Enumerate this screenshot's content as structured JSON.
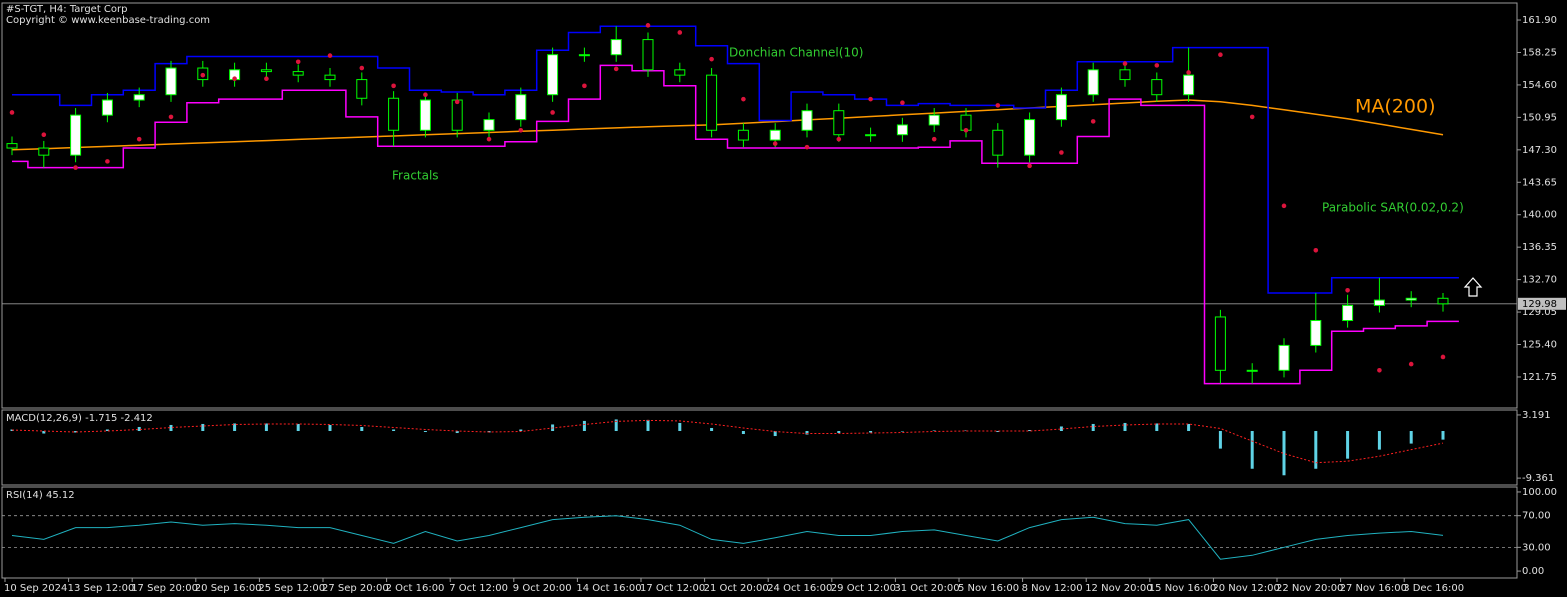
{
  "chart_data": [
    {
      "type": "candlestick",
      "title": "#S-TGT, H4:  Target Corp",
      "subtitle": "Copyright © www.keenbase-trading.com",
      "open": [
        148.0,
        147.5,
        146.7,
        151.2,
        152.9,
        153.5,
        156.5,
        155.2,
        156.3,
        156.1,
        155.7,
        155.2,
        153.1,
        149.5,
        152.9,
        149.5,
        150.7,
        153.5,
        158.0,
        158.0,
        159.7,
        156.3,
        155.7,
        149.5,
        148.4,
        149.5,
        151.7,
        149.0,
        149.0,
        150.1,
        151.2,
        149.5,
        146.7,
        150.7,
        153.5,
        156.3,
        155.2,
        153.5,
        128.5,
        122.5,
        122.5,
        125.3,
        128.1,
        129.8,
        130.4,
        130.6
      ],
      "high": [
        148.8,
        148.3,
        152.0,
        153.7,
        154.3,
        157.3,
        157.3,
        157.1,
        157.1,
        156.9,
        156.5,
        156.0,
        153.9,
        153.7,
        153.7,
        151.5,
        154.3,
        158.8,
        158.8,
        161.2,
        160.5,
        157.1,
        156.5,
        150.3,
        150.3,
        152.5,
        152.5,
        149.8,
        150.9,
        152.0,
        152.0,
        150.3,
        151.5,
        154.3,
        157.1,
        157.1,
        156.0,
        158.8,
        129.3,
        123.3,
        126.1,
        131.2,
        131.0,
        132.9,
        131.4,
        131.2
      ],
      "low": [
        146.7,
        145.3,
        145.9,
        150.4,
        152.1,
        152.7,
        154.4,
        154.4,
        155.3,
        154.9,
        154.4,
        152.3,
        147.7,
        148.7,
        148.7,
        148.7,
        149.9,
        152.7,
        157.2,
        157.2,
        155.5,
        154.9,
        148.7,
        147.6,
        147.6,
        148.7,
        148.2,
        148.2,
        148.2,
        149.3,
        148.7,
        145.3,
        145.9,
        149.9,
        152.7,
        154.4,
        152.7,
        152.7,
        121.0,
        121.0,
        121.7,
        124.5,
        127.3,
        129.0,
        129.6,
        129.1
      ],
      "close": [
        147.5,
        146.7,
        151.2,
        152.9,
        153.5,
        156.5,
        155.2,
        156.3,
        156.1,
        155.7,
        155.2,
        153.1,
        149.5,
        152.9,
        149.5,
        150.7,
        153.5,
        158.0,
        158.0,
        159.7,
        156.3,
        155.7,
        149.5,
        148.4,
        149.5,
        151.7,
        149.0,
        149.0,
        150.1,
        151.2,
        149.5,
        146.7,
        150.7,
        153.5,
        156.3,
        155.2,
        153.5,
        155.7,
        122.5,
        122.5,
        125.3,
        128.1,
        129.8,
        130.4,
        130.6,
        129.98
      ],
      "up_color": "#ffffff",
      "down_color": "#000000",
      "wick_color": "#00ff00",
      "ma": {
        "label": "MA(200)",
        "color": "#ff9900",
        "values": [
          147.3,
          147.43,
          147.56,
          147.69,
          147.82,
          147.95,
          148.08,
          148.21,
          148.34,
          148.47,
          148.6,
          148.73,
          148.86,
          148.99,
          149.12,
          149.25,
          149.38,
          149.51,
          149.64,
          149.77,
          149.9,
          150.0,
          150.1,
          150.29,
          150.48,
          150.67,
          150.86,
          151.05,
          151.24,
          151.43,
          151.62,
          151.81,
          152.0,
          152.19,
          152.38,
          152.57,
          152.76,
          152.9,
          152.7,
          152.3,
          151.8,
          151.3,
          150.8,
          150.2,
          149.6,
          149.0
        ]
      },
      "donchian": {
        "label": "Donchian Channel(10)",
        "upper": {
          "color": "#0000ff",
          "values": [
            153.5,
            153.5,
            152.3,
            153.5,
            154.0,
            157.0,
            157.8,
            157.8,
            157.8,
            157.8,
            157.8,
            157.8,
            156.5,
            154.0,
            153.8,
            153.5,
            154.0,
            158.5,
            160.5,
            161.2,
            161.2,
            161.2,
            159.0,
            157.0,
            150.6,
            153.8,
            153.5,
            153.0,
            152.3,
            152.5,
            152.3,
            152.3,
            152.0,
            154.0,
            157.2,
            157.2,
            157.2,
            158.8,
            158.8,
            158.8,
            131.2,
            131.2,
            132.9,
            132.9,
            132.9,
            132.9
          ]
        },
        "lower": {
          "color": "#ff00ff",
          "values": [
            146.0,
            145.3,
            145.3,
            145.3,
            147.5,
            150.4,
            152.6,
            153.0,
            153.0,
            154.0,
            154.0,
            151.0,
            147.7,
            147.7,
            147.7,
            147.7,
            148.2,
            150.5,
            153.0,
            156.8,
            156.2,
            154.5,
            148.5,
            147.5,
            147.5,
            147.5,
            147.5,
            147.5,
            147.5,
            147.6,
            148.3,
            145.8,
            145.8,
            145.8,
            148.8,
            153.0,
            152.3,
            152.3,
            121.0,
            121.0,
            121.0,
            122.5,
            126.9,
            127.2,
            127.5,
            128.0
          ]
        }
      },
      "sar": {
        "label": "Parabolic SAR(0.02,0.2)",
        "color": "#dc143c",
        "values": [
          151.5,
          149.0,
          145.3,
          146.0,
          148.5,
          151.0,
          155.7,
          155.3,
          155.3,
          157.2,
          157.9,
          156.5,
          154.5,
          153.5,
          152.7,
          148.5,
          149.5,
          151.5,
          154.5,
          156.4,
          161.3,
          160.5,
          157.5,
          153.0,
          148.0,
          147.6,
          148.5,
          153.0,
          152.6,
          148.5,
          149.5,
          152.3,
          145.5,
          147.0,
          150.5,
          157.0,
          156.8,
          156.0,
          158.0,
          151.0,
          141.0,
          136.0,
          131.5,
          122.5,
          123.2,
          124.0
        ]
      },
      "fractals_label": "Fractals",
      "last_price": {
        "value": 129.98,
        "label": "129.98"
      },
      "ylim": [
        118.26,
        163.59
      ],
      "yticks": [
        {
          "value": 161.9,
          "label": "161.90"
        },
        158.25,
        {
          "value": 154.6,
          "label": "154.60"
        },
        150.95,
        {
          "value": 147.3,
          "label": "147.30"
        },
        143.65,
        {
          "value": 140,
          "label": "140.00"
        },
        136.35,
        {
          "value": 132.7,
          "label": "132.70"
        },
        129.05,
        {
          "value": 125.4,
          "label": "125.40"
        },
        121.75
      ]
    },
    {
      "type": "bar",
      "title": "MACD(12,26,9) -1.715 -2.412",
      "color": "#5fd3e6",
      "values": [
        0.3,
        -0.5,
        -0.3,
        0.3,
        0.8,
        1.2,
        1.4,
        1.5,
        1.5,
        1.4,
        1.2,
        0.8,
        0.3,
        -0.2,
        -0.4,
        -0.3,
        0.3,
        1.3,
        2.0,
        2.3,
        2.2,
        1.6,
        0.6,
        -0.6,
        -1.0,
        -0.7,
        -0.4,
        -0.3,
        -0.1,
        0.1,
        0.1,
        -0.2,
        0.2,
        0.9,
        1.4,
        1.6,
        1.5,
        1.4,
        -3.5,
        -7.5,
        -8.8,
        -7.5,
        -5.5,
        -3.7,
        -2.5,
        -1.715
      ],
      "signal": {
        "color": "#ff2020",
        "values": [
          0.2,
          0,
          -0.2,
          0,
          0.3,
          0.7,
          1.0,
          1.3,
          1.4,
          1.4,
          1.3,
          1.1,
          0.7,
          0.3,
          0,
          -0.2,
          -0.1,
          0.6,
          1.3,
          1.9,
          2.1,
          2.0,
          1.4,
          0.6,
          -0.1,
          -0.5,
          -0.5,
          -0.4,
          -0.3,
          -0.1,
          0,
          0,
          0,
          0.4,
          0.9,
          1.2,
          1.4,
          1.4,
          0.5,
          -2.0,
          -4.5,
          -6.3,
          -6.0,
          -5.0,
          -3.7,
          -2.412
        ]
      },
      "ylim": [
        -10.73,
        3.975
      ],
      "yticks": [
        3.191,
        -9.361
      ]
    },
    {
      "type": "line",
      "title": "RSI(14) 45.12",
      "color": "#20b2c0",
      "values": [
        45,
        40,
        55,
        55,
        58,
        62,
        58,
        60,
        58,
        55,
        55,
        45,
        35,
        50,
        38,
        45,
        55,
        65,
        68,
        70,
        65,
        58,
        40,
        35,
        42,
        50,
        45,
        45,
        50,
        52,
        45,
        38,
        55,
        65,
        68,
        60,
        58,
        65,
        15,
        20,
        30,
        40,
        45,
        48,
        50,
        45.12
      ],
      "levels": [
        70,
        30
      ],
      "ylim": [
        -8.75,
        105
      ],
      "yticks": [
        {
          "value": 100,
          "label": "100.00"
        },
        {
          "value": 70,
          "label": "70.00"
        },
        {
          "value": 30,
          "label": "30.00"
        },
        {
          "value": 0,
          "label": "0.00"
        }
      ],
      "categories": [
        "10 Sep 2024",
        null,
        "13 Sep 12:00",
        null,
        "17 Sep 20:00",
        null,
        "20 Sep 16:00",
        null,
        "25 Sep 12:00",
        null,
        "27 Sep 20:00",
        null,
        "2 Oct 16:00",
        null,
        "7 Oct 12:00",
        null,
        "9 Oct 20:00",
        null,
        "14 Oct 16:00",
        null,
        "17 Oct 12:00",
        null,
        "21 Oct 20:00",
        null,
        "24 Oct 16:00",
        null,
        "29 Oct 12:00",
        null,
        "31 Oct 20:00",
        null,
        "5 Nov 16:00",
        null,
        "8 Nov 12:00",
        null,
        "12 Nov 20:00",
        null,
        "15 Nov 16:00",
        null,
        "20 Nov 12:00",
        null,
        "22 Nov 20:00",
        null,
        "27 Nov 16:00",
        null,
        "3 Dec 16:00",
        null
      ]
    }
  ]
}
